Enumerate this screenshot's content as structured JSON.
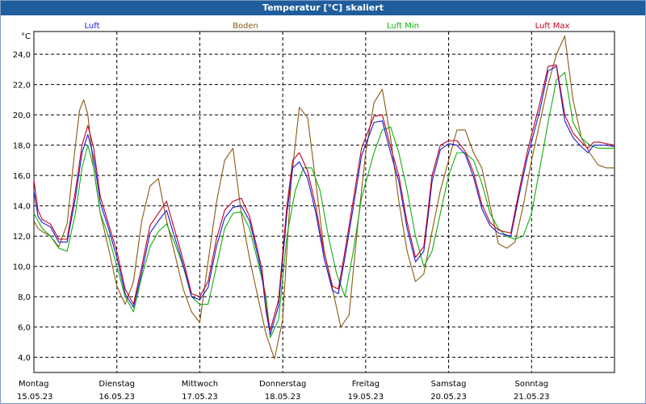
{
  "window": {
    "title": "Temperatur [°C] skaliert"
  },
  "colors": {
    "luft": "#1a1ad0",
    "boden": "#8a5a10",
    "luft_min": "#10b010",
    "luft_max": "#c00020"
  },
  "chart_data": {
    "type": "line",
    "title": "Temperatur [°C] skaliert",
    "ylabel": "°C",
    "xlabel": "",
    "ylim": [
      3.0,
      25.5
    ],
    "xlim": [
      0,
      7
    ],
    "yticks": [
      4.0,
      6.0,
      8.0,
      10.0,
      12.0,
      14.0,
      16.0,
      18.0,
      20.0,
      22.0,
      24.0
    ],
    "ytick_labels": [
      "4,0",
      "6,0",
      "8,0",
      "10,0",
      "12,0",
      "14,0",
      "16,0",
      "18,0",
      "20,0",
      "22,0",
      "24,0"
    ],
    "days": [
      {
        "name": "Montag",
        "date": "15.05.23"
      },
      {
        "name": "Dienstag",
        "date": "16.05.23"
      },
      {
        "name": "Mittwoch",
        "date": "17.05.23"
      },
      {
        "name": "Donnerstag",
        "date": "18.05.23"
      },
      {
        "name": "Freitag",
        "date": "19.05.23"
      },
      {
        "name": "Samstag",
        "date": "20.05.23"
      },
      {
        "name": "Sonntag",
        "date": "21.05.23"
      }
    ],
    "grid": true,
    "legend": [
      "Luft",
      "Boden",
      "Luft Min",
      "Luft Max"
    ],
    "series": [
      {
        "name": "Luft",
        "color": "#1a1ad0",
        "x": [
          0,
          0.05,
          0.1,
          0.2,
          0.3,
          0.4,
          0.5,
          0.58,
          0.65,
          0.72,
          0.8,
          0.9,
          1.0,
          1.1,
          1.2,
          1.3,
          1.4,
          1.5,
          1.6,
          1.68,
          1.75,
          1.82,
          1.9,
          2.0,
          2.1,
          2.2,
          2.3,
          2.4,
          2.5,
          2.6,
          2.7,
          2.75,
          2.8,
          2.85,
          2.95,
          3.05,
          3.12,
          3.2,
          3.3,
          3.4,
          3.5,
          3.6,
          3.67,
          3.75,
          3.85,
          3.95,
          4.1,
          4.2,
          4.3,
          4.4,
          4.5,
          4.6,
          4.7,
          4.75,
          4.8,
          4.9,
          5.0,
          5.1,
          5.2,
          5.3,
          5.4,
          5.5,
          5.6,
          5.67,
          5.75,
          5.85,
          5.95,
          6.1,
          6.2,
          6.3,
          6.4,
          6.5,
          6.6,
          6.68,
          6.75,
          6.82,
          6.9,
          7.0
        ],
        "y": [
          15.0,
          13.3,
          12.9,
          12.6,
          11.6,
          11.6,
          14.5,
          17.5,
          18.7,
          17.2,
          14.2,
          12.5,
          10.6,
          8.2,
          7.3,
          9.6,
          12.2,
          13.0,
          13.7,
          12.2,
          11.0,
          9.7,
          8.0,
          7.8,
          8.6,
          11.3,
          13.2,
          13.9,
          14.0,
          13.0,
          10.7,
          9.4,
          7.0,
          5.5,
          7.4,
          13.5,
          16.5,
          16.9,
          15.8,
          13.5,
          10.5,
          8.4,
          8.2,
          10.6,
          13.9,
          17.3,
          19.5,
          19.6,
          17.5,
          15.6,
          12.5,
          10.3,
          11.0,
          13.2,
          15.6,
          17.7,
          18.1,
          18.0,
          17.4,
          15.9,
          13.8,
          12.7,
          12.2,
          12.1,
          12.0,
          14.7,
          17.2,
          20.3,
          22.9,
          23.2,
          19.6,
          18.5,
          17.9,
          17.5,
          18.0,
          18.0,
          18.0,
          17.9
        ]
      },
      {
        "name": "Boden",
        "color": "#8a5a10",
        "x": [
          0,
          0.05,
          0.1,
          0.2,
          0.3,
          0.4,
          0.48,
          0.55,
          0.6,
          0.65,
          0.72,
          0.8,
          0.9,
          1.0,
          1.1,
          1.2,
          1.3,
          1.4,
          1.5,
          1.6,
          1.7,
          1.8,
          1.9,
          2.0,
          2.1,
          2.2,
          2.3,
          2.4,
          2.5,
          2.6,
          2.7,
          2.8,
          2.9,
          3.0,
          3.1,
          3.2,
          3.3,
          3.4,
          3.5,
          3.6,
          3.7,
          3.8,
          3.9,
          4.0,
          4.1,
          4.2,
          4.3,
          4.4,
          4.5,
          4.6,
          4.7,
          4.8,
          4.9,
          5.0,
          5.1,
          5.2,
          5.3,
          5.4,
          5.5,
          5.6,
          5.7,
          5.8,
          5.9,
          6.0,
          6.1,
          6.2,
          6.3,
          6.4,
          6.5,
          6.6,
          6.7,
          6.8,
          6.9,
          7.0
        ],
        "y": [
          13.0,
          12.5,
          12.3,
          12.0,
          11.3,
          12.8,
          17.0,
          20.3,
          21.0,
          20.0,
          16.5,
          13.5,
          11.2,
          8.7,
          7.5,
          9.0,
          13.0,
          15.3,
          15.8,
          13.0,
          10.8,
          8.5,
          7.0,
          6.3,
          10.3,
          14.2,
          17.0,
          17.8,
          13.5,
          10.5,
          8.0,
          5.5,
          3.9,
          6.5,
          15.5,
          20.5,
          19.8,
          15.5,
          11.0,
          8.5,
          6.0,
          6.8,
          12.5,
          17.5,
          20.8,
          21.7,
          18.5,
          14.3,
          11.0,
          9.0,
          9.5,
          12.3,
          15.0,
          17.0,
          19.0,
          19.0,
          17.5,
          16.5,
          14.0,
          11.5,
          11.2,
          11.6,
          14.0,
          17.0,
          19.5,
          22.0,
          24.0,
          25.2,
          21.0,
          18.5,
          17.5,
          16.7,
          16.5,
          16.5
        ]
      },
      {
        "name": "Luft Min",
        "color": "#10b010",
        "x": [
          0,
          0.1,
          0.2,
          0.3,
          0.4,
          0.5,
          0.58,
          0.65,
          0.72,
          0.8,
          0.9,
          1.0,
          1.1,
          1.2,
          1.3,
          1.4,
          1.5,
          1.6,
          1.7,
          1.8,
          1.9,
          2.0,
          2.1,
          2.2,
          2.3,
          2.4,
          2.5,
          2.6,
          2.7,
          2.8,
          2.85,
          2.95,
          3.05,
          3.15,
          3.25,
          3.35,
          3.45,
          3.55,
          3.65,
          3.75,
          3.85,
          3.95,
          4.1,
          4.2,
          4.3,
          4.4,
          4.5,
          4.6,
          4.7,
          4.8,
          4.9,
          5.0,
          5.1,
          5.2,
          5.3,
          5.4,
          5.5,
          5.6,
          5.7,
          5.8,
          5.9,
          6.0,
          6.1,
          6.2,
          6.3,
          6.4,
          6.5,
          6.6,
          6.7,
          6.8,
          6.9,
          7.0
        ],
        "y": [
          13.5,
          12.5,
          12.0,
          11.2,
          11.0,
          13.5,
          16.5,
          18.0,
          16.5,
          13.5,
          12.0,
          10.0,
          8.0,
          7.0,
          9.3,
          11.3,
          12.3,
          12.8,
          11.5,
          10.0,
          8.0,
          7.5,
          7.5,
          10.0,
          12.5,
          13.5,
          13.6,
          12.5,
          10.3,
          8.0,
          5.3,
          6.5,
          12.0,
          15.0,
          16.5,
          16.5,
          15.0,
          12.0,
          9.5,
          8.0,
          11.0,
          14.5,
          17.5,
          19.0,
          19.2,
          17.5,
          15.0,
          12.0,
          10.0,
          11.0,
          13.5,
          16.0,
          17.5,
          17.5,
          17.0,
          15.5,
          13.5,
          12.5,
          12.0,
          11.8,
          12.0,
          13.5,
          16.5,
          19.5,
          22.3,
          22.8,
          19.5,
          18.5,
          18.0,
          17.8,
          17.8,
          17.8
        ]
      },
      {
        "name": "Luft Max",
        "color": "#c00020",
        "x": [
          0,
          0.05,
          0.1,
          0.2,
          0.3,
          0.4,
          0.5,
          0.58,
          0.65,
          0.72,
          0.8,
          0.9,
          1.0,
          1.1,
          1.2,
          1.3,
          1.4,
          1.5,
          1.6,
          1.68,
          1.75,
          1.82,
          1.9,
          2.0,
          2.1,
          2.2,
          2.3,
          2.4,
          2.5,
          2.6,
          2.7,
          2.75,
          2.8,
          2.85,
          2.95,
          3.05,
          3.12,
          3.2,
          3.3,
          3.4,
          3.5,
          3.6,
          3.67,
          3.75,
          3.85,
          3.95,
          4.1,
          4.2,
          4.3,
          4.4,
          4.5,
          4.6,
          4.7,
          4.75,
          4.8,
          4.9,
          5.0,
          5.1,
          5.2,
          5.3,
          5.4,
          5.5,
          5.6,
          5.67,
          5.75,
          5.85,
          5.95,
          6.1,
          6.2,
          6.3,
          6.4,
          6.5,
          6.6,
          6.68,
          6.75,
          6.82,
          6.9,
          7.0
        ],
        "y": [
          15.7,
          13.7,
          13.1,
          12.8,
          11.8,
          11.8,
          15.0,
          18.0,
          19.3,
          17.8,
          14.6,
          12.8,
          11.0,
          8.5,
          7.5,
          10.0,
          12.7,
          13.5,
          14.3,
          12.7,
          11.4,
          10.0,
          8.2,
          8.0,
          9.0,
          11.8,
          13.7,
          14.3,
          14.5,
          13.3,
          11.0,
          9.8,
          7.3,
          5.8,
          7.8,
          14.0,
          17.0,
          17.5,
          16.3,
          13.9,
          10.9,
          8.7,
          8.5,
          11.0,
          14.4,
          17.8,
          19.9,
          20.0,
          17.9,
          16.0,
          12.9,
          10.6,
          11.3,
          13.6,
          16.0,
          18.0,
          18.3,
          18.3,
          17.6,
          16.2,
          14.1,
          12.9,
          12.4,
          12.3,
          12.2,
          15.0,
          17.6,
          20.8,
          23.2,
          23.3,
          20.0,
          18.8,
          18.2,
          17.8,
          18.2,
          18.2,
          18.1,
          18.0
        ]
      }
    ]
  }
}
